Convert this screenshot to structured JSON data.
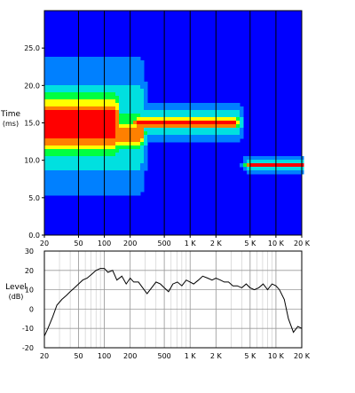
{
  "chart_data": [
    {
      "type": "heatmap",
      "ylabel": "Time",
      "ylabel_unit": "(ms)",
      "x_scale": "log",
      "xlim": [
        20,
        20000
      ],
      "ylim": [
        0,
        30
      ],
      "x_ticks": [
        {
          "value": 20,
          "label": "20"
        },
        {
          "value": 50,
          "label": "50"
        },
        {
          "value": 100,
          "label": "100"
        },
        {
          "value": 200,
          "label": "200"
        },
        {
          "value": 500,
          "label": "500"
        },
        {
          "value": 1000,
          "label": "1 K"
        },
        {
          "value": 2000,
          "label": "2 K"
        },
        {
          "value": 5000,
          "label": "5 K"
        },
        {
          "value": 10000,
          "label": "10 K"
        },
        {
          "value": 20000,
          "label": "20 K"
        }
      ],
      "y_ticks": [
        {
          "value": 0,
          "label": "0.0"
        },
        {
          "value": 5,
          "label": "5.0"
        },
        {
          "value": 10,
          "label": "10.0"
        },
        {
          "value": 15,
          "label": "15.0"
        },
        {
          "value": 20,
          "label": "20.0"
        },
        {
          "value": 25,
          "label": "25.0"
        }
      ],
      "colormap": [
        "#0000ff",
        "#0080ff",
        "#00e0e0",
        "#00ff40",
        "#ffff00",
        "#ff8000",
        "#ff0000"
      ],
      "blobs": [
        {
          "f_lo": 20,
          "f_hi": 130,
          "t": 14.8,
          "t_spread": 4.5,
          "level": 1.0
        },
        {
          "f_lo": 20,
          "f_hi": 260,
          "t": 14.5,
          "t_spread": 8.5,
          "level": 0.45
        },
        {
          "f_lo": 130,
          "f_hi": 260,
          "t": 13.5,
          "t_spread": 2.2,
          "level": 0.85
        },
        {
          "f_lo": 250,
          "f_hi": 3200,
          "t": 15.0,
          "t_spread": 0.9,
          "level": 0.98
        },
        {
          "f_lo": 250,
          "f_hi": 3500,
          "t": 15.0,
          "t_spread": 2.2,
          "level": 0.5
        },
        {
          "f_lo": 5000,
          "f_hi": 20000,
          "t": 9.3,
          "t_spread": 0.4,
          "level": 0.9
        },
        {
          "f_lo": 5000,
          "f_hi": 20000,
          "t": 9.5,
          "t_spread": 1.2,
          "level": 0.45
        }
      ]
    },
    {
      "type": "line",
      "ylabel": "Level",
      "ylabel_unit": "(dB)",
      "x_scale": "log",
      "xlim": [
        20,
        20000
      ],
      "ylim": [
        -20,
        30
      ],
      "x_ticks": [
        {
          "value": 20,
          "label": "20"
        },
        {
          "value": 50,
          "label": "50"
        },
        {
          "value": 100,
          "label": "100"
        },
        {
          "value": 200,
          "label": "200"
        },
        {
          "value": 500,
          "label": "500"
        },
        {
          "value": 1000,
          "label": "1 K"
        },
        {
          "value": 2000,
          "label": "2 K"
        },
        {
          "value": 5000,
          "label": "5 K"
        },
        {
          "value": 10000,
          "label": "10 K"
        },
        {
          "value": 20000,
          "label": "20 K"
        }
      ],
      "y_ticks": [
        {
          "value": 30,
          "label": "30"
        },
        {
          "value": 20,
          "label": "20"
        },
        {
          "value": 10,
          "label": "10"
        },
        {
          "value": 0,
          "label": "0"
        },
        {
          "value": -10,
          "label": "-10"
        },
        {
          "value": -20,
          "label": "-20"
        }
      ],
      "grid": true,
      "series": [
        {
          "x": [
            20,
            22,
            25,
            28,
            32,
            36,
            40,
            45,
            50,
            56,
            63,
            71,
            80,
            90,
            100,
            110,
            125,
            140,
            160,
            180,
            200,
            220,
            250,
            280,
            315,
            355,
            400,
            450,
            500,
            560,
            630,
            710,
            800,
            900,
            1000,
            1100,
            1250,
            1400,
            1600,
            1800,
            2000,
            2250,
            2500,
            2800,
            3150,
            3550,
            4000,
            4500,
            5000,
            5600,
            6300,
            7100,
            8000,
            9000,
            10000,
            11000,
            12500,
            14000,
            16000,
            18000,
            20000
          ],
          "y": [
            -14,
            -10,
            -4,
            2,
            5,
            7,
            9,
            11,
            13,
            15,
            16,
            18,
            20,
            21,
            21,
            19,
            20,
            15,
            17,
            13,
            16,
            14,
            14,
            11,
            8,
            11,
            14,
            13,
            11,
            9,
            13,
            14,
            12,
            15,
            14,
            13,
            15,
            17,
            16,
            15,
            16,
            15,
            14,
            14,
            12,
            12,
            11,
            13,
            11,
            10,
            11,
            13,
            10,
            13,
            12,
            10,
            5,
            -5,
            -12,
            -9,
            -10
          ]
        }
      ]
    }
  ]
}
